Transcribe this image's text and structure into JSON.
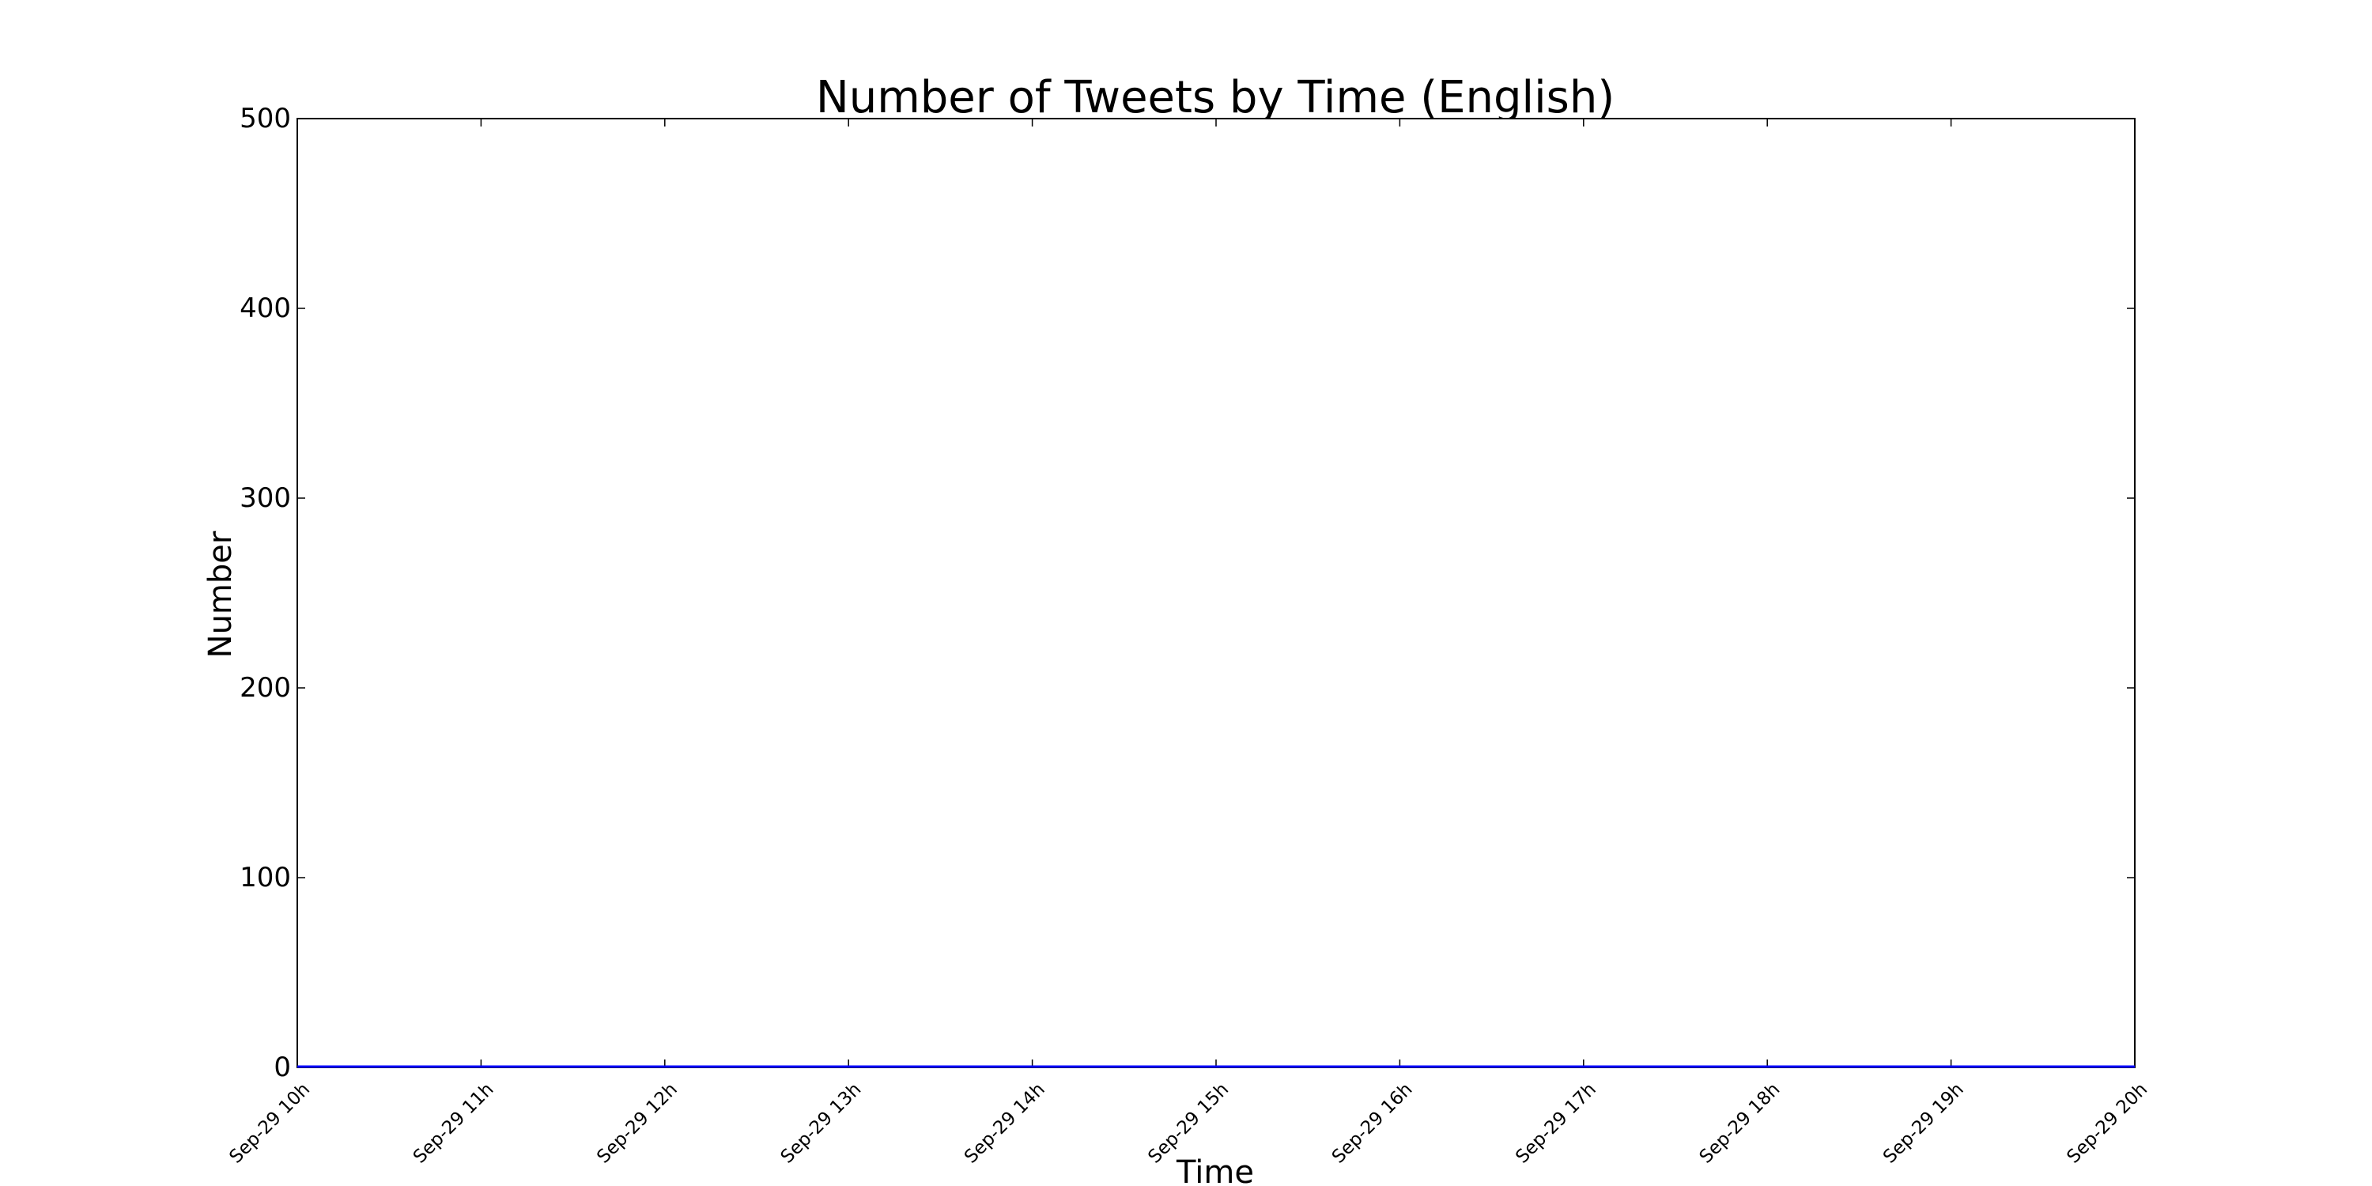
{
  "chart_data": {
    "type": "line",
    "title": "Number of Tweets by Time (English)",
    "xlabel": "Time",
    "ylabel": "Number",
    "x_ticks": [
      "Sep-29 10h",
      "Sep-29 11h",
      "Sep-29 12h",
      "Sep-29 13h",
      "Sep-29 14h",
      "Sep-29 15h",
      "Sep-29 16h",
      "Sep-29 17h",
      "Sep-29 18h",
      "Sep-29 19h",
      "Sep-29 20h"
    ],
    "y_ticks": [
      0,
      100,
      200,
      300,
      400,
      500
    ],
    "ylim": [
      0,
      500
    ],
    "grid": false,
    "series": [
      {
        "color": "#0000ff",
        "x": [
          "Sep-29 10h",
          "Sep-29 11h",
          "Sep-29 12h",
          "Sep-29 13h",
          "Sep-29 14h",
          "Sep-29 15h",
          "Sep-29 16h",
          "Sep-29 17h",
          "Sep-29 18h",
          "Sep-29 19h",
          "Sep-29 20h"
        ],
        "y": [
          0,
          0,
          0,
          0,
          0,
          0,
          0,
          0,
          0,
          0,
          0
        ]
      }
    ]
  }
}
